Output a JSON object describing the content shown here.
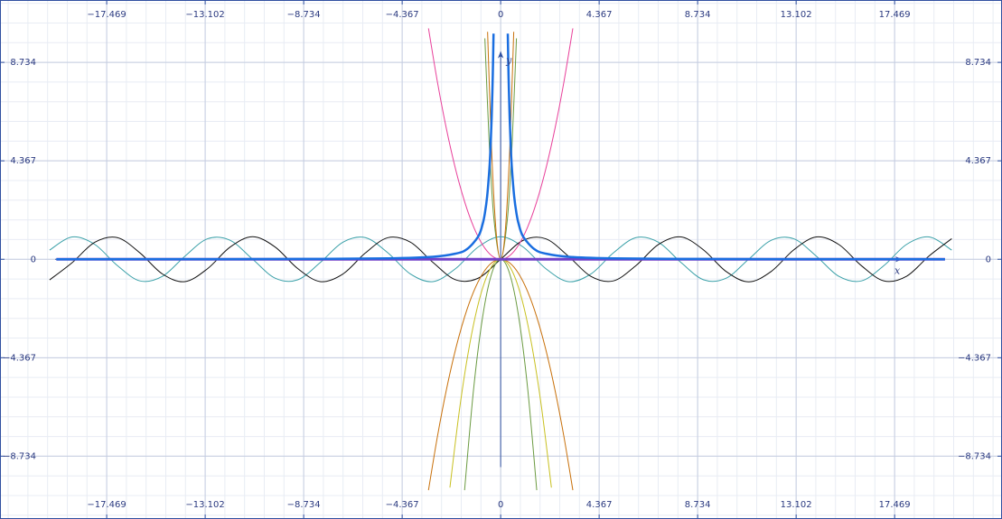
{
  "chart_data": {
    "type": "line",
    "x_label": "x",
    "y_label": "y",
    "xlim": [
      -22.2,
      22.23
    ],
    "ylim": [
      -11.52,
      11.5
    ],
    "grid": true,
    "xticks": [
      {
        "value": -17.469,
        "label": "−17.469"
      },
      {
        "value": -13.102,
        "label": "−13.102"
      },
      {
        "value": -8.734,
        "label": "−8.734"
      },
      {
        "value": -4.367,
        "label": "−4.367"
      },
      0,
      4.367,
      8.734,
      13.102,
      17.469
    ],
    "yticks": [
      {
        "value": -8.734,
        "label": "−8.734"
      },
      {
        "value": -4.367,
        "label": "−4.367"
      },
      0,
      4.367,
      8.734
    ],
    "series": [
      {
        "color": "#3aa0a8",
        "line_width": 1,
        "x": [
          -20,
          -19,
          -18,
          -17,
          -16,
          -15,
          -14,
          -13,
          -12,
          -11,
          -10,
          -9,
          -8,
          -7,
          -6,
          -5,
          -4,
          -3,
          -2,
          -1,
          0,
          1,
          2,
          3,
          4,
          5,
          6,
          7,
          8,
          9,
          10,
          11,
          12,
          13,
          14,
          15,
          16,
          17,
          18,
          19,
          20
        ],
        "values": [
          0.408,
          0.989,
          0.66,
          -0.275,
          -0.958,
          -0.76,
          0.137,
          0.907,
          0.844,
          0.004,
          -0.839,
          -0.911,
          -0.146,
          0.754,
          0.96,
          0.284,
          -0.654,
          -0.99,
          -0.416,
          0.54,
          1,
          0.54,
          -0.416,
          -0.99,
          -0.654,
          0.284,
          0.96,
          0.754,
          -0.146,
          -0.911,
          -0.839,
          0.004,
          0.844,
          0.907,
          0.137,
          -0.76,
          -0.958,
          -0.275,
          0.66,
          0.989,
          0.408
        ]
      },
      {
        "color": "#111111",
        "line_width": 1,
        "x": [
          -20,
          -19,
          -18,
          -17,
          -16,
          -15,
          -14,
          -13,
          -12,
          -11,
          -10,
          -9,
          -8,
          -7,
          -6,
          -5,
          -4,
          -3,
          -2,
          -1,
          0,
          1,
          2,
          3,
          4,
          5,
          6,
          7,
          8,
          9,
          10,
          11,
          12,
          13,
          14,
          15,
          16,
          17,
          18,
          19,
          20
        ],
        "values": [
          -0.913,
          -0.15,
          0.751,
          0.961,
          0.288,
          -0.65,
          -0.991,
          -0.42,
          0.537,
          1.0,
          0.544,
          -0.412,
          -0.989,
          -0.657,
          0.279,
          0.959,
          0.757,
          -0.141,
          -0.909,
          -0.841,
          0,
          0.841,
          0.909,
          0.141,
          -0.757,
          -0.959,
          -0.279,
          0.657,
          0.989,
          0.412,
          -0.544,
          -1.0,
          -0.537,
          0.42,
          0.991,
          0.65,
          -0.288,
          -0.961,
          -0.751,
          0.15,
          0.913
        ]
      },
      {
        "color": "#e8409a",
        "line_width": 1,
        "x": [
          -3.2,
          -2.8,
          -2.4,
          -2,
          -1.6,
          -1.2,
          -0.8,
          -0.4,
          0,
          0.4,
          0.8,
          1.2,
          1.6,
          2,
          2.4,
          2.8,
          3.2
        ],
        "values": [
          10.24,
          7.84,
          5.76,
          4,
          2.56,
          1.44,
          0.64,
          0.16,
          0,
          0.16,
          0.64,
          1.44,
          2.56,
          4,
          5.76,
          7.84,
          10.24
        ]
      },
      {
        "color": "#c8700a",
        "line_width": 1,
        "x": [
          -3.2,
          -2.8,
          -2.4,
          -2,
          -1.6,
          -1.2,
          -0.8,
          -0.4,
          0,
          0.4,
          0.8,
          1.2,
          1.6,
          2,
          2.4,
          2.8,
          3.2
        ],
        "values": [
          -10.24,
          -7.84,
          -5.76,
          -4,
          -2.56,
          -1.44,
          -0.64,
          -0.16,
          0,
          -0.16,
          -0.64,
          -1.44,
          -2.56,
          -4,
          -5.76,
          -7.84,
          -10.24
        ]
      },
      {
        "color": "#c8c020",
        "line_width": 1,
        "x": [
          -2.25,
          -1.8,
          -1.35,
          -0.9,
          -0.45,
          0,
          0.45,
          0.9,
          1.35,
          1.8,
          2.25
        ],
        "values": [
          -10.125,
          -6.48,
          -3.645,
          -1.62,
          -0.405,
          0,
          -0.405,
          -1.62,
          -3.645,
          -6.48,
          -10.125
        ]
      },
      {
        "color": "#6a9a40",
        "line_width": 1,
        "x": [
          -1.6,
          -1.2,
          -0.8,
          -0.4,
          0,
          0.4,
          0.8,
          1.2,
          1.6
        ],
        "values": [
          -10.24,
          -5.76,
          -2.56,
          -0.64,
          0,
          -0.64,
          -2.56,
          -5.76,
          -10.24
        ]
      },
      {
        "color": "#6a9a40",
        "line_width": 1,
        "x": [
          -0.7,
          -0.5,
          -0.3,
          0,
          0.3,
          0.5,
          0.7
        ],
        "values": [
          9.8,
          5,
          1.8,
          0,
          1.8,
          5,
          9.8
        ]
      },
      {
        "color": "#c8700a",
        "line_width": 1,
        "x": [
          -0.58,
          -0.4,
          -0.2,
          0,
          0.2,
          0.4,
          0.58
        ],
        "values": [
          10.09,
          4.8,
          1.2,
          0,
          1.2,
          4.8,
          10.09
        ]
      },
      {
        "color": "#7040c8",
        "line_width": 3,
        "x": [
          -19.7,
          19.7
        ],
        "values": [
          0,
          0
        ]
      },
      {
        "color": "#1a6ee0",
        "line_width": 2.5,
        "x": [
          -19.7,
          -12,
          -8,
          -5,
          -3,
          -2,
          -1.5,
          -1,
          -0.8,
          -0.7,
          -0.6,
          -0.5,
          -0.45,
          -0.4,
          -0.35,
          -0.316,
          0,
          0.316,
          0.35,
          0.4,
          0.45,
          0.5,
          0.6,
          0.7,
          0.8,
          1,
          1.5,
          2,
          3,
          5,
          8,
          12,
          19.7
        ],
        "values": [
          0.0026,
          0.0069,
          0.0156,
          0.04,
          0.111,
          0.25,
          0.444,
          1,
          1.5625,
          2.04,
          2.78,
          4,
          4.94,
          6.25,
          8.16,
          10.01,
          null,
          10.01,
          8.16,
          6.25,
          4.94,
          4,
          2.78,
          2.04,
          1.5625,
          1,
          0.444,
          0.25,
          0.111,
          0.04,
          0.0156,
          0.0069,
          0.0026
        ]
      }
    ]
  }
}
